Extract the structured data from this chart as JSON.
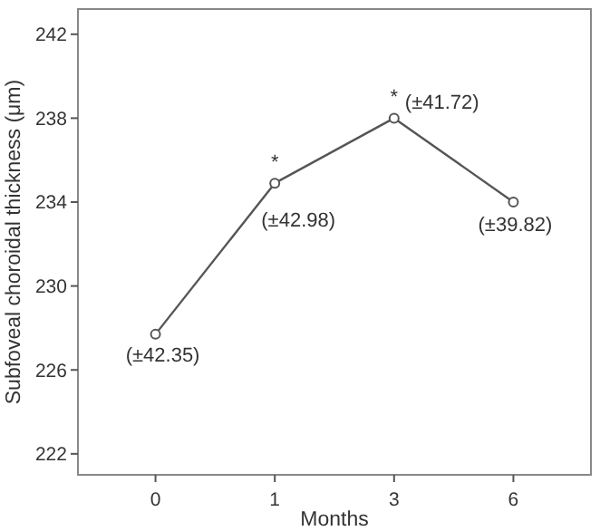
{
  "chart_data": {
    "type": "line",
    "xlabel": "Months",
    "ylabel": "Subfoveal choroidal thickness (μm)",
    "categories": [
      "0",
      "1",
      "3",
      "6"
    ],
    "series": [
      {
        "color": "#555555",
        "values": [
          227.7,
          234.9,
          238.0,
          234.0
        ]
      }
    ],
    "ylim": [
      221,
      243.2
    ],
    "yticks": [
      222,
      226,
      230,
      234,
      238,
      242
    ],
    "grid": false,
    "marker": "circle",
    "line_style": "solid",
    "annotations": [
      {
        "text": "(±42.35)",
        "x": "0",
        "y": 227.7
      },
      {
        "text": "*",
        "x": "1",
        "y": 234.9
      },
      {
        "text": "(±42.98)",
        "x": "1",
        "y": 234.9
      },
      {
        "text": "*",
        "x": "3",
        "y": 238.0
      },
      {
        "text": "(±41.72)",
        "x": "3",
        "y": 238.0
      },
      {
        "text": "(±39.82)",
        "x": "6",
        "y": 234.0
      }
    ]
  }
}
